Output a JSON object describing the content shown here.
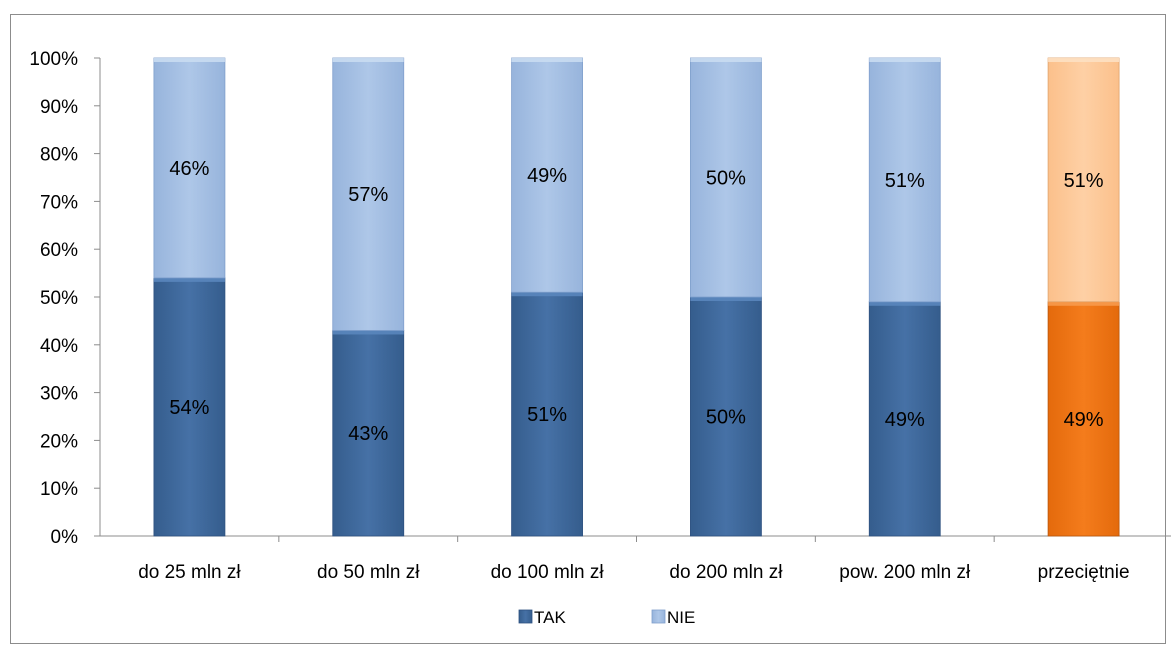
{
  "chart_data": {
    "type": "bar",
    "stacked": true,
    "percent": true,
    "categories": [
      "do 25 mln zł",
      "do 50 mln zł",
      "do 100 mln zł",
      "do 200 mln zł",
      "pow. 200 mln zł",
      "przeciętnie"
    ],
    "series": [
      {
        "name": "TAK",
        "values": [
          54,
          43,
          51,
          50,
          49,
          49
        ],
        "labels": [
          "54%",
          "43%",
          "51%",
          "50%",
          "49%",
          "49%"
        ],
        "color": "#3f6a9e",
        "highlight_color": "#ef7515"
      },
      {
        "name": "NIE",
        "values": [
          46,
          57,
          49,
          50,
          51,
          51
        ],
        "labels": [
          "46%",
          "57%",
          "49%",
          "50%",
          "51%",
          "51%"
        ],
        "color": "#a4bfe3",
        "highlight_color": "#fdc99a"
      }
    ],
    "highlight_category": "przeciętnie",
    "ylim": [
      0,
      100
    ],
    "yticks": [
      "0%",
      "10%",
      "20%",
      "30%",
      "40%",
      "50%",
      "60%",
      "70%",
      "80%",
      "90%",
      "100%"
    ],
    "xlabel": "",
    "ylabel": "",
    "grid": false,
    "legend_position": "bottom"
  }
}
